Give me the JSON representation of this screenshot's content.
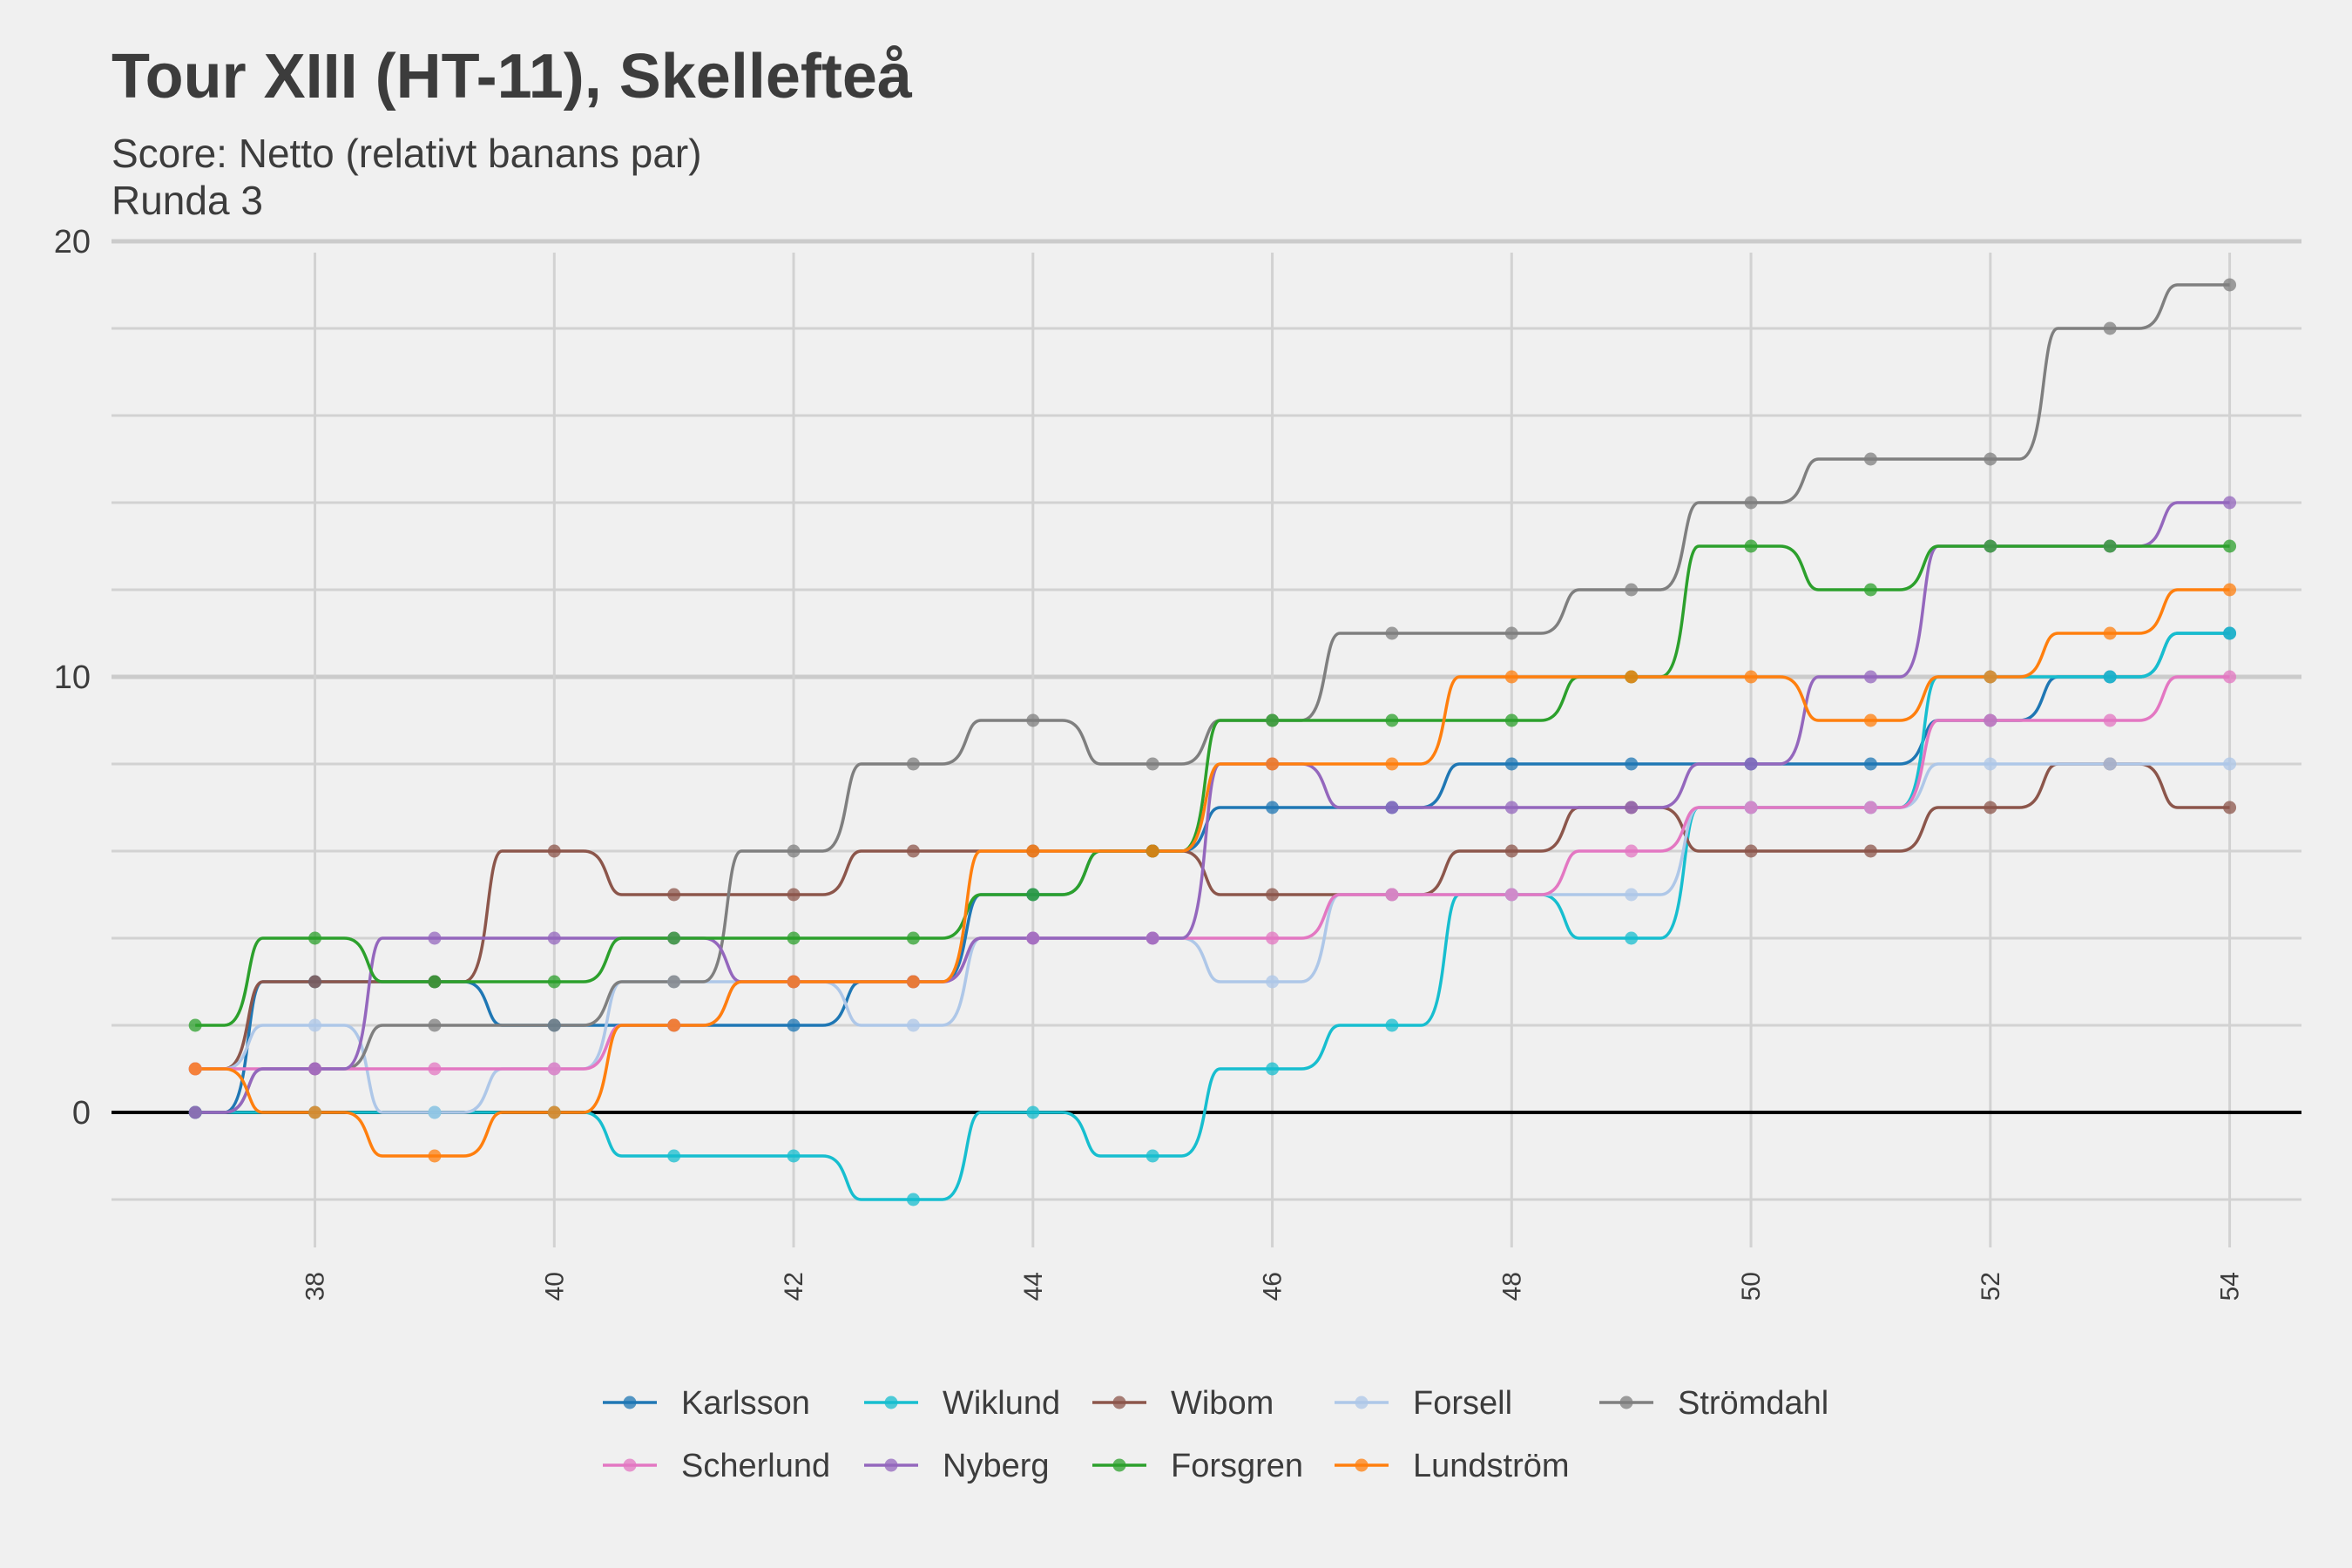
{
  "chart_data": {
    "type": "line",
    "title": "Tour XIII (HT-11), Skellefteå",
    "subtitle": "Score: Netto (relativt banans par)",
    "subtitle2": "Runda 3",
    "xlabel": "",
    "ylabel": "",
    "xlim": [
      36.3,
      54.6
    ],
    "ylim": [
      -3.1,
      20.3
    ],
    "x_ticks": [
      38,
      40,
      42,
      44,
      46,
      48,
      50,
      52,
      54
    ],
    "y_ticks": [
      0,
      10,
      20
    ],
    "grid": true,
    "legend_position": "bottom",
    "x": [
      37,
      38,
      39,
      40,
      41,
      42,
      43,
      44,
      45,
      46,
      47,
      48,
      49,
      50,
      51,
      52,
      53,
      54
    ],
    "series": [
      {
        "name": "Karlsson",
        "color": "#1f77b4",
        "values": [
          0,
          3,
          3,
          2,
          2,
          2,
          3,
          5,
          6,
          7,
          7,
          8,
          8,
          8,
          8,
          9,
          10,
          11
        ]
      },
      {
        "name": "Wiklund",
        "color": "#17becf",
        "values": [
          0,
          0,
          0,
          0,
          -1,
          -1,
          -2,
          0,
          -1,
          1,
          2,
          5,
          4,
          7,
          7,
          10,
          10,
          11
        ]
      },
      {
        "name": "Wibom",
        "color": "#8c564b",
        "values": [
          1,
          3,
          3,
          6,
          5,
          5,
          6,
          6,
          6,
          5,
          5,
          6,
          7,
          6,
          6,
          7,
          8,
          7
        ]
      },
      {
        "name": "Forsell",
        "color": "#aec7e8",
        "values": [
          1,
          2,
          0,
          1,
          3,
          3,
          2,
          4,
          4,
          3,
          5,
          5,
          5,
          7,
          7,
          8,
          8,
          8
        ]
      },
      {
        "name": "Strömdahl",
        "color": "#7f7f7f",
        "values": [
          0,
          1,
          2,
          2,
          3,
          6,
          8,
          9,
          8,
          9,
          11,
          11,
          12,
          14,
          15,
          15,
          18,
          19
        ]
      },
      {
        "name": "Scherlund",
        "color": "#e377c2",
        "values": [
          1,
          1,
          1,
          1,
          2,
          3,
          3,
          4,
          4,
          4,
          5,
          5,
          6,
          7,
          7,
          9,
          9,
          10
        ]
      },
      {
        "name": "Nyberg",
        "color": "#9467bd",
        "values": [
          0,
          1,
          4,
          4,
          4,
          3,
          3,
          4,
          4,
          8,
          7,
          7,
          7,
          8,
          10,
          13,
          13,
          14
        ]
      },
      {
        "name": "Forsgren",
        "color": "#2ca02c",
        "values": [
          2,
          4,
          3,
          3,
          4,
          4,
          4,
          5,
          6,
          9,
          9,
          9,
          10,
          13,
          12,
          13,
          13,
          13
        ]
      },
      {
        "name": "Lundström",
        "color": "#ff7f0e",
        "values": [
          1,
          0,
          -1,
          0,
          2,
          3,
          3,
          6,
          6,
          8,
          8,
          10,
          10,
          10,
          9,
          10,
          11,
          12
        ]
      }
    ]
  }
}
